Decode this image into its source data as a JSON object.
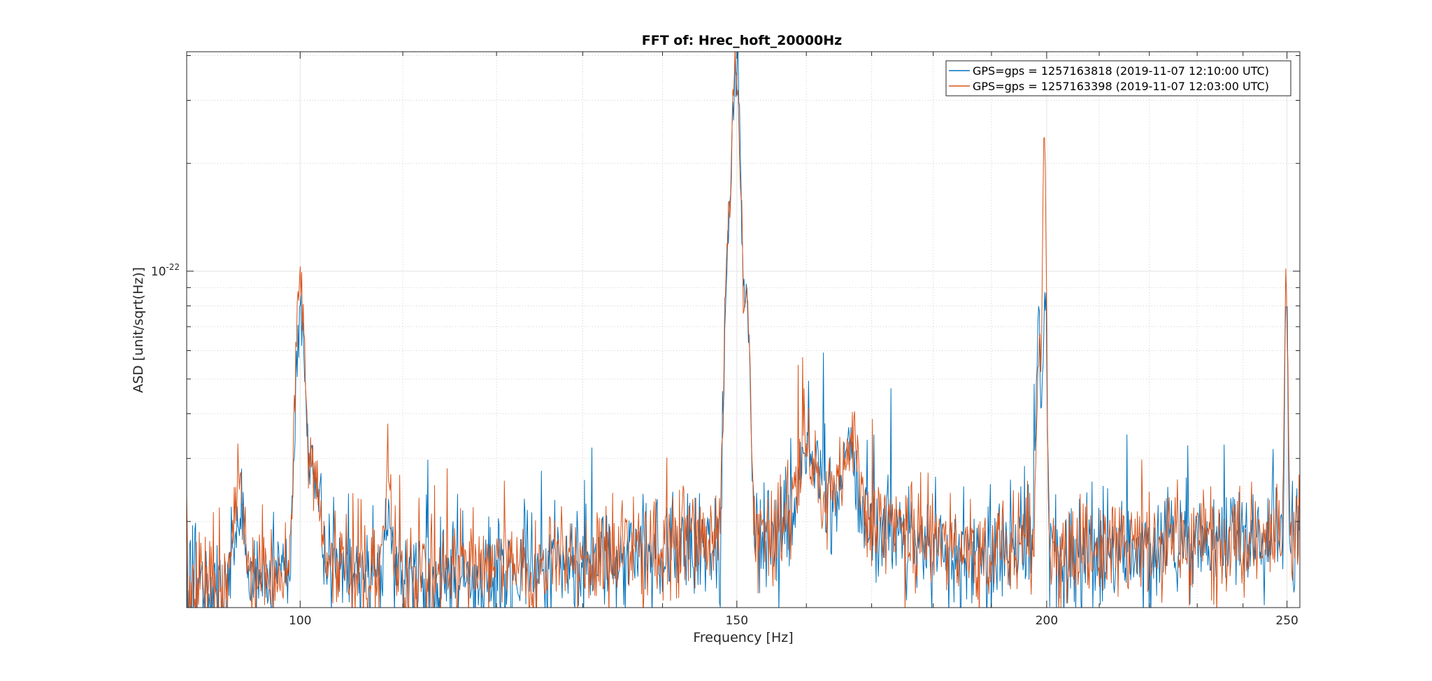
{
  "chart_data": {
    "type": "line",
    "title": "FFT of: Hrec_hoft_20000Hz",
    "xlabel": "Frequency [Hz]",
    "ylabel": "ASD [unit/sqrt(Hz)]",
    "xscale": "log",
    "yscale": "log",
    "xlim": [
      90,
      253
    ],
    "ylim": [
      1.15e-23,
      4.1e-22
    ],
    "x_ticks": [
      {
        "value": 100,
        "label": "100"
      },
      {
        "value": 150,
        "label": "150"
      },
      {
        "value": 200,
        "label": "200"
      },
      {
        "value": 250,
        "label": "250"
      }
    ],
    "y_ticks": [
      {
        "value": 1e-22,
        "base": "10",
        "exponent": "-22"
      }
    ],
    "grid": true,
    "minor_grid": true,
    "legend_position": "top-right",
    "series": [
      {
        "name": "GPS=gps = 1257163818 (2019-11-07 12:10:00 UTC)",
        "color": "#0072BD",
        "seed": 11,
        "baseline": [
          [
            90,
            1.3e-23
          ],
          [
            100,
            1.45e-23
          ],
          [
            110,
            1.38e-23
          ],
          [
            120,
            1.45e-23
          ],
          [
            130,
            1.55e-23
          ],
          [
            140,
            1.68e-23
          ],
          [
            147,
            1.78e-23
          ],
          [
            152,
            1.9e-23
          ],
          [
            155,
            1.75e-23
          ],
          [
            160,
            2.2e-23
          ],
          [
            165,
            2.3e-23
          ],
          [
            170,
            1.88e-23
          ],
          [
            180,
            1.72e-23
          ],
          [
            190,
            1.6e-23
          ],
          [
            195,
            1.75e-23
          ],
          [
            200,
            1.65e-23
          ],
          [
            205,
            1.62e-23
          ],
          [
            220,
            1.72e-23
          ],
          [
            240,
            1.8e-23
          ],
          [
            253,
            1.85e-23
          ]
        ],
        "peaks": [
          {
            "f": 100,
            "a": 6.5e-23,
            "w": 0.35
          },
          {
            "f": 101.2,
            "a": 1.5e-23,
            "w": 0.6
          },
          {
            "f": 94.5,
            "a": 7e-24,
            "w": 0.4
          },
          {
            "f": 108.5,
            "a": 8e-24,
            "w": 0.3
          },
          {
            "f": 149.9,
            "a": 4e-22,
            "w": 0.5
          },
          {
            "f": 148.7,
            "a": 9e-23,
            "w": 0.35
          },
          {
            "f": 151.4,
            "a": 7e-23,
            "w": 0.35
          },
          {
            "f": 160,
            "a": 1e-23,
            "w": 1.2
          },
          {
            "f": 166.5,
            "a": 1.2e-23,
            "w": 0.9
          },
          {
            "f": 198.5,
            "a": 5.5e-23,
            "w": 0.4
          },
          {
            "f": 199.7,
            "a": 8e-23,
            "w": 0.3
          },
          {
            "f": 249.8,
            "a": 7e-23,
            "w": 0.3
          }
        ]
      },
      {
        "name": "GPS=gps = 1257163398 (2019-11-07 12:03:00 UTC)",
        "color": "#D95319",
        "seed": 29,
        "baseline": [
          [
            90,
            1.32e-23
          ],
          [
            100,
            1.45e-23
          ],
          [
            110,
            1.4e-23
          ],
          [
            120,
            1.47e-23
          ],
          [
            130,
            1.58e-23
          ],
          [
            140,
            1.7e-23
          ],
          [
            147,
            1.8e-23
          ],
          [
            152,
            1.92e-23
          ],
          [
            155,
            1.78e-23
          ],
          [
            160,
            2.15e-23
          ],
          [
            165,
            2.35e-23
          ],
          [
            170,
            1.9e-23
          ],
          [
            180,
            1.73e-23
          ],
          [
            190,
            1.62e-23
          ],
          [
            195,
            1.78e-23
          ],
          [
            200,
            1.68e-23
          ],
          [
            205,
            1.65e-23
          ],
          [
            220,
            1.75e-23
          ],
          [
            240,
            1.82e-23
          ],
          [
            253,
            1.88e-23
          ]
        ],
        "peaks": [
          {
            "f": 100,
            "a": 8.5e-23,
            "w": 0.35
          },
          {
            "f": 101.2,
            "a": 1.4e-23,
            "w": 0.6
          },
          {
            "f": 94.5,
            "a": 1.3e-23,
            "w": 0.35
          },
          {
            "f": 108.5,
            "a": 1.2e-23,
            "w": 0.3
          },
          {
            "f": 149.9,
            "a": 3.9e-22,
            "w": 0.5
          },
          {
            "f": 148.7,
            "a": 1e-22,
            "w": 0.35
          },
          {
            "f": 151.4,
            "a": 8e-23,
            "w": 0.35
          },
          {
            "f": 160,
            "a": 9e-24,
            "w": 1.2
          },
          {
            "f": 167,
            "a": 1.4e-23,
            "w": 0.9
          },
          {
            "f": 198.7,
            "a": 4.5e-23,
            "w": 0.4
          },
          {
            "f": 199.6,
            "a": 2.3e-22,
            "w": 0.25
          },
          {
            "f": 249.8,
            "a": 9.5e-23,
            "w": 0.3
          }
        ]
      }
    ]
  }
}
